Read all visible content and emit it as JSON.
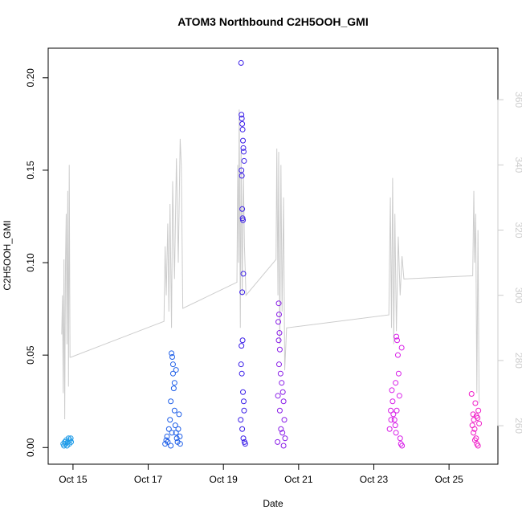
{
  "chart_data": {
    "type": "scatter",
    "title": "ATOM3 Northbound C2H5OOH_GMI",
    "xlabel": "Date",
    "ylabel": "C2H5OOH_GMI",
    "xlim": [
      14.34,
      26.3
    ],
    "xticks": [
      {
        "value": 15,
        "label": "Oct 15"
      },
      {
        "value": 17,
        "label": "Oct 17"
      },
      {
        "value": 19,
        "label": "Oct 19"
      },
      {
        "value": 21,
        "label": "Oct 21"
      },
      {
        "value": 23,
        "label": "Oct 23"
      },
      {
        "value": 25,
        "label": "Oct 25"
      }
    ],
    "ylim": [
      -0.009,
      0.216
    ],
    "yticks": [
      {
        "value": 0,
        "label": "0.00"
      },
      0.05,
      {
        "value": 0.1,
        "label": "0.10"
      },
      0.15,
      {
        "value": 0.2,
        "label": "0.20"
      }
    ],
    "y2lim": [
      248.2,
      375.8
    ],
    "y2ticks": [
      260,
      280,
      300,
      320,
      340,
      360
    ],
    "series": [
      {
        "type": "line",
        "axis": "y2",
        "color": "#cccccc",
        "x": [
          14.7,
          14.72,
          14.74,
          14.76,
          14.78,
          14.8,
          14.82,
          14.84,
          14.86,
          14.88,
          14.9,
          14.92,
          14.94,
          17.42,
          17.45,
          17.48,
          17.52,
          17.55,
          17.58,
          17.62,
          17.65,
          17.7,
          17.75,
          17.8,
          17.85,
          17.88,
          17.92,
          19.36,
          19.38,
          19.4,
          19.42,
          19.45,
          19.47,
          19.5,
          19.53,
          19.56,
          19.6,
          20.4,
          20.42,
          20.45,
          20.47,
          20.5,
          20.53,
          20.56,
          20.6,
          20.63,
          20.68,
          23.4,
          23.44,
          23.47,
          23.5,
          23.53,
          23.56,
          23.6,
          23.65,
          23.7,
          23.75,
          23.8,
          25.63,
          25.66,
          25.68,
          25.71,
          25.74,
          25.77,
          25.8
        ],
        "values": [
          288,
          300,
          270,
          311,
          262,
          310,
          325,
          285,
          332,
          272,
          340,
          281,
          281,
          292,
          315,
          300,
          322,
          295,
          328,
          290,
          335,
          305,
          342,
          310,
          348,
          340,
          296,
          304,
          340,
          310,
          357,
          290,
          345,
          300,
          338,
          315,
          300,
          311,
          345,
          300,
          344,
          285,
          340,
          295,
          330,
          277,
          290,
          294,
          330,
          290,
          336,
          285,
          325,
          289,
          318,
          300,
          312,
          305,
          306,
          332,
          310,
          325,
          270,
          320,
          267
        ]
      },
      {
        "color": "#1e9be8",
        "x": [
          14.74,
          14.76,
          14.78,
          14.8,
          14.82,
          14.84,
          14.86,
          14.88,
          14.9,
          14.92,
          14.94,
          14.95
        ],
        "values": [
          0.002,
          0.001,
          0.003,
          0.002,
          0.004,
          0.001,
          0.003,
          0.005,
          0.002,
          0.004,
          0.005,
          0.003
        ]
      },
      {
        "color": "#1f5fe8",
        "x": [
          17.45,
          17.48,
          17.5,
          17.52,
          17.55,
          17.58,
          17.6,
          17.62,
          17.64,
          17.66,
          17.68,
          17.7,
          17.72,
          17.74,
          17.76,
          17.78,
          17.8,
          17.82,
          17.84,
          17.85,
          17.6,
          17.63,
          17.66,
          17.7,
          17.74
        ],
        "values": [
          0.002,
          0.004,
          0.006,
          0.003,
          0.01,
          0.015,
          0.025,
          0.051,
          0.049,
          0.04,
          0.032,
          0.02,
          0.012,
          0.008,
          0.005,
          0.003,
          0.01,
          0.018,
          0.006,
          0.002,
          0.001,
          0.008,
          0.045,
          0.035,
          0.042
        ]
      },
      {
        "color": "#3a1ee8",
        "x": [
          19.47,
          19.48,
          19.49,
          19.5,
          19.51,
          19.52,
          19.53,
          19.54,
          19.55,
          19.48,
          19.49,
          19.5,
          19.51,
          19.52,
          19.53,
          19.5,
          19.51,
          19.48,
          19.47,
          19.49,
          19.52,
          19.54,
          19.55,
          19.46,
          19.5,
          19.53,
          19.56,
          19.58
        ],
        "values": [
          0.208,
          0.18,
          0.178,
          0.175,
          0.172,
          0.166,
          0.162,
          0.16,
          0.155,
          0.15,
          0.147,
          0.129,
          0.124,
          0.123,
          0.094,
          0.084,
          0.058,
          0.055,
          0.045,
          0.04,
          0.03,
          0.025,
          0.02,
          0.015,
          0.01,
          0.005,
          0.003,
          0.002
        ]
      },
      {
        "color": "#8a1ee8",
        "x": [
          20.47,
          20.48,
          20.46,
          20.49,
          20.47,
          20.5,
          20.48,
          20.52,
          20.55,
          20.58,
          20.45,
          20.6,
          20.5,
          20.62,
          20.53,
          20.57,
          20.64,
          20.44,
          20.6
        ],
        "values": [
          0.078,
          0.072,
          0.068,
          0.062,
          0.058,
          0.053,
          0.045,
          0.04,
          0.035,
          0.03,
          0.028,
          0.025,
          0.02,
          0.015,
          0.01,
          0.008,
          0.005,
          0.003,
          0.001
        ]
      },
      {
        "color": "#d81ee8",
        "x": [
          23.42,
          23.45,
          23.48,
          23.5,
          23.52,
          23.55,
          23.57,
          23.6,
          23.62,
          23.64,
          23.66,
          23.68,
          23.7,
          23.72,
          23.74,
          23.58,
          23.61,
          23.59,
          23.75,
          23.46
        ],
        "values": [
          0.01,
          0.02,
          0.031,
          0.025,
          0.018,
          0.015,
          0.012,
          0.06,
          0.058,
          0.05,
          0.04,
          0.028,
          0.005,
          0.002,
          0.054,
          0.035,
          0.02,
          0.008,
          0.001,
          0.015
        ]
      },
      {
        "color": "#f01ec8",
        "x": [
          25.6,
          25.62,
          25.64,
          25.66,
          25.68,
          25.7,
          25.72,
          25.74,
          25.76,
          25.78,
          25.8,
          25.65,
          25.69,
          25.73,
          25.77
        ],
        "values": [
          0.029,
          0.012,
          0.018,
          0.015,
          0.01,
          0.024,
          0.005,
          0.002,
          0.016,
          0.02,
          0.013,
          0.008,
          0.004,
          0.017,
          0.001
        ]
      }
    ]
  }
}
